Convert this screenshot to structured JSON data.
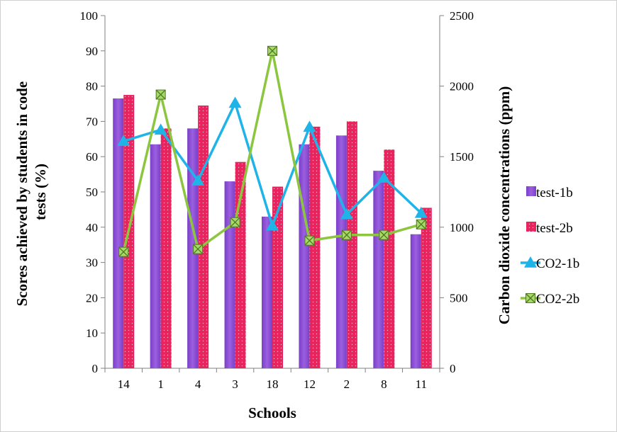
{
  "chart_data": {
    "type": "bar",
    "categories": [
      "14",
      "1",
      "4",
      "3",
      "18",
      "12",
      "2",
      "8",
      "11"
    ],
    "xlabel": "Schools",
    "ylabel": "Scores achieved by students in code tests (%)",
    "ylabel_lines": [
      "Scores achieved by students in code",
      "tests (%)"
    ],
    "y2label": "Carbon dioxide concentrations (ppm)",
    "ylim": [
      0,
      100
    ],
    "y2lim": [
      0,
      2500
    ],
    "yticks": [
      "0",
      "10",
      "20",
      "30",
      "40",
      "50",
      "60",
      "70",
      "80",
      "90",
      "100"
    ],
    "y2ticks": [
      "0",
      "500",
      "1000",
      "1500",
      "2000",
      "2500"
    ],
    "grid": false,
    "legend_position": "right",
    "series": [
      {
        "name": "test-1b",
        "kind": "bar",
        "axis": "left",
        "color": "#8e4fd6",
        "values": [
          76.5,
          63.5,
          68,
          53,
          43,
          63.5,
          66,
          56,
          38
        ]
      },
      {
        "name": "test-2b",
        "kind": "bar",
        "axis": "left",
        "color": "#e8245f",
        "values": [
          77.5,
          68,
          74.5,
          58.5,
          51.5,
          68.5,
          70,
          62,
          45.5
        ]
      },
      {
        "name": "CO2-1b",
        "kind": "line",
        "axis": "right",
        "color": "#1fb4e8",
        "marker": "triangle",
        "values": [
          1610,
          1690,
          1330,
          1880,
          1010,
          1710,
          1090,
          1350,
          1100
        ]
      },
      {
        "name": "CO2-2b",
        "kind": "line",
        "axis": "right",
        "color": "#8cc63f",
        "marker": "square-x",
        "values": [
          825,
          1940,
          845,
          1035,
          2250,
          905,
          945,
          945,
          1020
        ]
      }
    ]
  }
}
